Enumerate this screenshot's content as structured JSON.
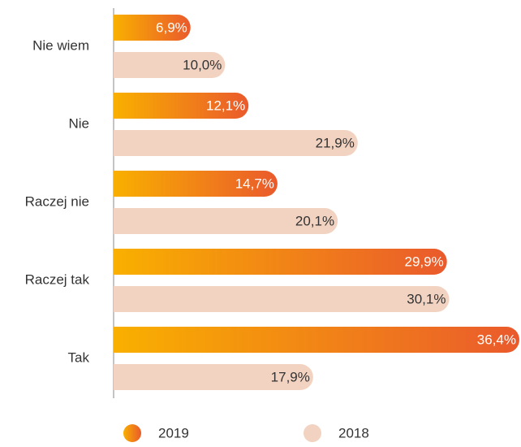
{
  "chart_data": {
    "type": "bar",
    "orientation": "horizontal",
    "categories": [
      "Nie wiem",
      "Nie",
      "Raczej nie",
      "Raczej tak",
      "Tak"
    ],
    "series": [
      {
        "name": "2019",
        "color": [
          "#f9b000",
          "#ea5a2c"
        ],
        "values": [
          6.9,
          12.1,
          14.7,
          29.9,
          36.4
        ],
        "value_labels": [
          "6,9%",
          "12,1%",
          "14,7%",
          "29,9%",
          "36,4%"
        ]
      },
      {
        "name": "2018",
        "color": "#f2d2c0",
        "values": [
          10.0,
          21.9,
          20.1,
          30.1,
          17.9
        ],
        "value_labels": [
          "10,0%",
          "21,9%",
          "20,1%",
          "30,1%",
          "17,9%"
        ]
      }
    ],
    "legend": "bottom"
  }
}
